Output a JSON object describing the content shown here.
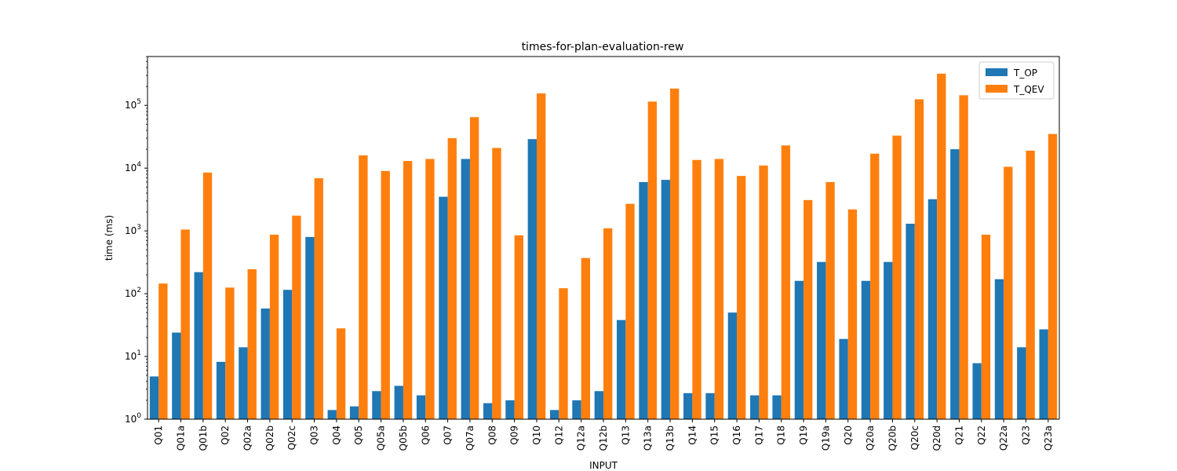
{
  "chart_data": {
    "type": "bar",
    "title": "times-for-plan-evaluation-rew",
    "xlabel": "INPUT",
    "ylabel": "time (ms)",
    "yscale": "log",
    "ylim": [
      1,
      600000
    ],
    "yticks": [
      {
        "value": 1,
        "base": "10",
        "exp": "0"
      },
      {
        "value": 10,
        "base": "10",
        "exp": "1"
      },
      {
        "value": 100,
        "base": "10",
        "exp": "2"
      },
      {
        "value": 1000,
        "base": "10",
        "exp": "3"
      },
      {
        "value": 10000,
        "base": "10",
        "exp": "4"
      },
      {
        "value": 100000,
        "base": "10",
        "exp": "5"
      }
    ],
    "legend": "top-right",
    "grid": false,
    "categories": [
      "Q01",
      "Q01a",
      "Q01b",
      "Q02",
      "Q02a",
      "Q02b",
      "Q02c",
      "Q03",
      "Q04",
      "Q05",
      "Q05a",
      "Q05b",
      "Q06",
      "Q07",
      "Q07a",
      "Q08",
      "Q09",
      "Q10",
      "Q12",
      "Q12a",
      "Q12b",
      "Q13",
      "Q13a",
      "Q13b",
      "Q14",
      "Q15",
      "Q16",
      "Q17",
      "Q18",
      "Q19",
      "Q19a",
      "Q20",
      "Q20a",
      "Q20b",
      "Q20c",
      "Q20d",
      "Q21",
      "Q22",
      "Q22a",
      "Q23",
      "Q23a"
    ],
    "series": [
      {
        "name": "T_OP",
        "color": "#1f77b4",
        "values": [
          4.8,
          24,
          220,
          8.2,
          14,
          58,
          115,
          800,
          1.4,
          1.6,
          2.8,
          3.4,
          2.4,
          3500,
          14000,
          1.8,
          2.0,
          29000,
          1.4,
          2.0,
          2.8,
          38,
          6000,
          6500,
          2.6,
          2.6,
          50,
          2.4,
          2.4,
          160,
          320,
          19,
          160,
          320,
          1300,
          3200,
          20000,
          7.8,
          170,
          14,
          27
        ]
      },
      {
        "name": "T_QEV",
        "color": "#ff7f0e",
        "values": [
          145,
          1050,
          8500,
          125,
          245,
          870,
          1750,
          6900,
          28,
          16000,
          9000,
          13000,
          14000,
          30000,
          65000,
          21000,
          850,
          155000,
          122,
          370,
          1100,
          2700,
          115000,
          185000,
          13500,
          14000,
          7500,
          11000,
          23000,
          3100,
          6000,
          2200,
          17000,
          33000,
          125000,
          320000,
          145000,
          870,
          10500,
          19000,
          35000
        ]
      }
    ]
  }
}
